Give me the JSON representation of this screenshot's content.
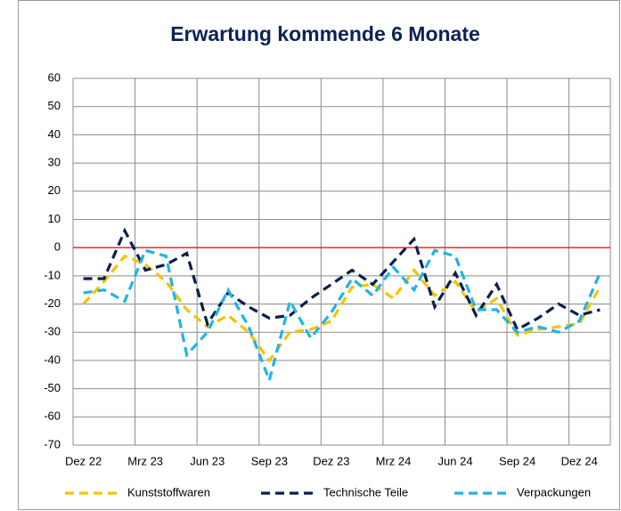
{
  "chart_data": {
    "type": "line",
    "title": "Erwartung kommende 6 Monate",
    "categories": [
      "Dez 22",
      null,
      null,
      "Mrz 23",
      null,
      null,
      "Jun 23",
      null,
      null,
      "Sep 23",
      null,
      null,
      "Dez 23",
      null,
      null,
      "Mrz 24",
      null,
      null,
      "Jun 24",
      null,
      null,
      "Sep 24",
      null,
      null,
      "Dez 24",
      null
    ],
    "series": [
      {
        "name": "Kunststoffwaren",
        "color": "#f7c300",
        "values": [
          -20,
          -12,
          -3,
          -6,
          -12,
          -22,
          -28,
          -24,
          -30,
          -40,
          -30,
          -29,
          -26,
          -14,
          -13,
          -18,
          -8,
          -17,
          -12,
          -23,
          -18,
          -31,
          -29,
          -28,
          -27,
          -14
        ]
      },
      {
        "name": "Technische Teile",
        "color": "#0a1f4f",
        "values": [
          -11,
          -11,
          6,
          -8,
          -6,
          -2,
          -27,
          -16,
          -21,
          -25,
          -24,
          -18,
          -13,
          -8,
          -13,
          -5,
          3,
          -21,
          -9,
          -24,
          -13,
          -29,
          -25,
          -20,
          -24,
          -22
        ]
      },
      {
        "name": "Verpackungen",
        "color": "#1fb4e6",
        "values": [
          -16,
          -15,
          -19,
          -1,
          -3,
          -38,
          -30,
          -15,
          -28,
          -47,
          -19,
          -32,
          -23,
          -11,
          -17,
          -7,
          -15,
          -1,
          -3,
          -22,
          -22,
          -30,
          -28,
          -30,
          -26,
          -9
        ]
      }
    ],
    "ylim": [
      -70,
      60
    ],
    "yticks": [
      -70,
      -60,
      -50,
      -40,
      -30,
      -20,
      -10,
      0,
      10,
      20,
      30,
      40,
      50,
      60
    ],
    "grid": true,
    "zero_line_color": "#e00000",
    "line_style": "dashed",
    "legend": "bottom"
  }
}
